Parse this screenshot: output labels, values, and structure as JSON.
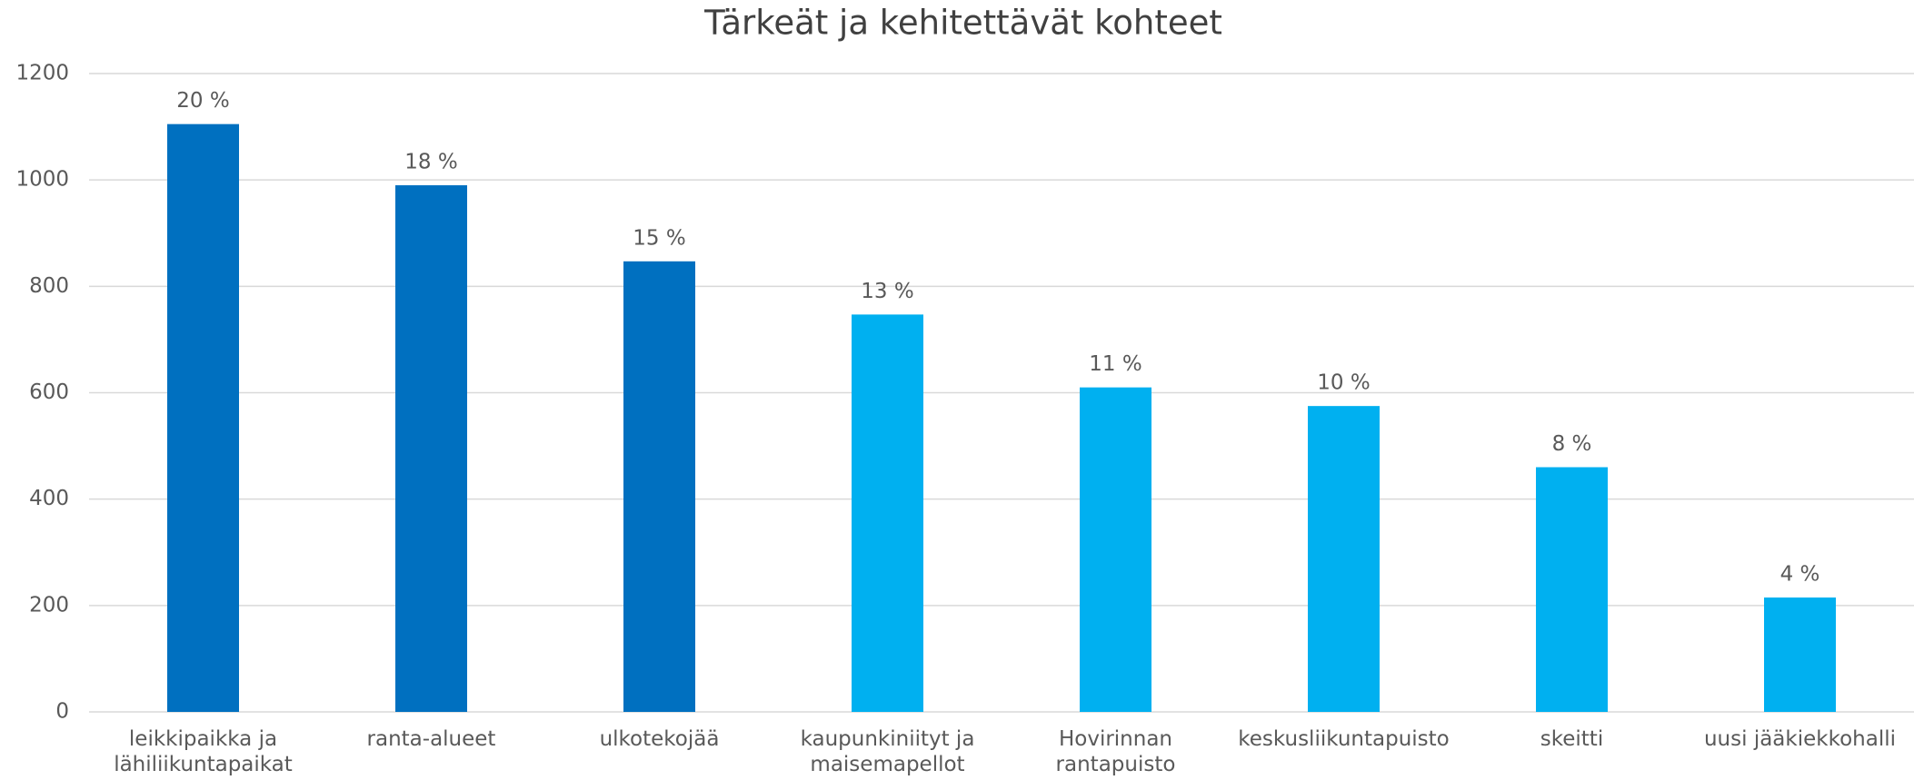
{
  "chart_data": {
    "type": "bar",
    "title": "Tärkeät ja kehitettävät kohteet",
    "categories": [
      "leikkipaikka ja lähiliikuntapaikat",
      "ranta-alueet",
      "ulkotekojää",
      "kaupunkiniityt ja maisemapellot",
      "Hovirinnan rantapuisto",
      "keskusliikuntapuisto",
      "skeitti",
      "uusi jääkiekkohalli"
    ],
    "values": [
      1105,
      990,
      847,
      747,
      610,
      575,
      460,
      215
    ],
    "value_labels": [
      "20 %",
      "18 %",
      "15 %",
      "13 %",
      "11 %",
      "10 %",
      "8 %",
      "4 %"
    ],
    "colors": [
      "#0070c0",
      "#0070c0",
      "#0070c0",
      "#00b0f0",
      "#00b0f0",
      "#00b0f0",
      "#00b0f0",
      "#00b0f0"
    ],
    "ylim": [
      0,
      1200
    ],
    "yticks": [
      0,
      200,
      400,
      600,
      800,
      1000,
      1200
    ],
    "grid": true
  }
}
